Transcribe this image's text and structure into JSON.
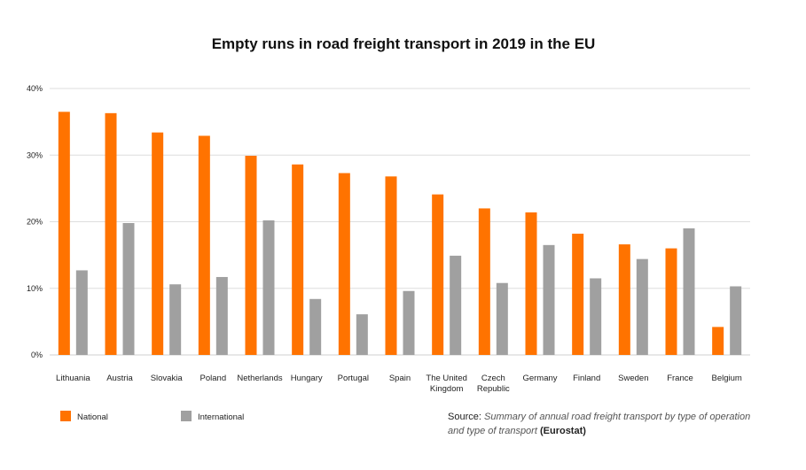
{
  "chart_data": {
    "type": "bar",
    "title": "Empty runs in road freight transport in 2019 in the EU",
    "xlabel": "",
    "ylabel": "",
    "ylim": [
      0,
      40
    ],
    "yticks": [
      "0%",
      "10%",
      "20%",
      "30%",
      "40%"
    ],
    "grid": true,
    "legend_position": "bottom-left",
    "categories": [
      [
        "Lithuania"
      ],
      [
        "Austria"
      ],
      [
        "Slovakia"
      ],
      [
        "Poland"
      ],
      [
        "Netherlands"
      ],
      [
        "Hungary"
      ],
      [
        "Portugal"
      ],
      [
        "Spain"
      ],
      [
        "The United",
        "Kingdom"
      ],
      [
        "Czech",
        "Republic"
      ],
      [
        "Germany"
      ],
      [
        "Finland"
      ],
      [
        "Sweden"
      ],
      [
        "France"
      ],
      [
        "Belgium"
      ]
    ],
    "series": [
      {
        "name": "National",
        "color": "#ff7300",
        "values": [
          36.5,
          36.3,
          33.4,
          32.9,
          29.9,
          28.6,
          27.3,
          26.8,
          24.1,
          22.0,
          21.4,
          18.2,
          16.6,
          16.0,
          4.2
        ]
      },
      {
        "name": "International",
        "color": "#a0a0a0",
        "values": [
          12.7,
          19.8,
          10.6,
          11.7,
          20.2,
          8.4,
          6.1,
          9.6,
          14.9,
          10.8,
          16.5,
          11.5,
          14.4,
          19.0,
          10.3
        ]
      }
    ]
  },
  "source": {
    "label": "Source:",
    "text": "Summary of annual road freight transport by type of operation and type of transport",
    "org": "(Eurostat)"
  }
}
